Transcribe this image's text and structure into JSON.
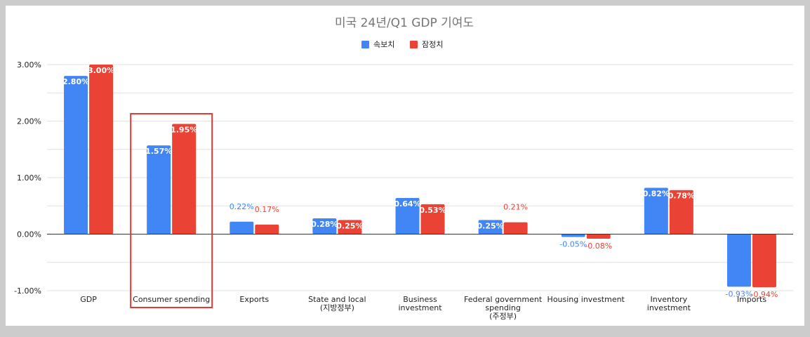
{
  "colors": {
    "series_blue": "#4285f4",
    "series_red": "#ea4335",
    "highlight_box": "#e53935",
    "grid": "#e0e0e0",
    "zero_line": "#333333"
  },
  "chart_data": {
    "type": "bar",
    "title": "미국 24년/Q1 GDP 기여도",
    "legend_position": "top",
    "grid": true,
    "categories": [
      [
        "GDP"
      ],
      [
        "Consumer spending"
      ],
      [
        "Exports"
      ],
      [
        "State and local",
        "(지방정부)"
      ],
      [
        "Business",
        "investment"
      ],
      [
        "Federal government",
        "spending",
        "(주정부)"
      ],
      [
        "Housing investment"
      ],
      [
        "Inventory",
        "investment"
      ],
      [
        "Imports"
      ]
    ],
    "series": [
      {
        "name": "속보치",
        "values": [
          2.8,
          1.57,
          0.22,
          0.28,
          0.64,
          0.25,
          -0.05,
          0.82,
          -0.93
        ],
        "labels": [
          "2.80%",
          "1.57%",
          "0.22%",
          "0.28%",
          "0.64%",
          "0.25%",
          "-0.05%",
          "0.82%",
          "-0.93%"
        ]
      },
      {
        "name": "잠정치",
        "values": [
          3.0,
          1.95,
          0.17,
          0.25,
          0.53,
          0.21,
          -0.08,
          0.78,
          -0.94
        ],
        "labels": [
          "3.00%",
          "1.95%",
          "0.17%",
          "0.25%",
          "0.53%",
          "0.21%",
          "-0.08%",
          "0.78%",
          "-0.94%"
        ]
      }
    ],
    "ylim": [
      -1.0,
      3.0
    ],
    "yticks": [
      3.0,
      2.0,
      1.0,
      0.0,
      -1.0
    ],
    "ytick_labels": [
      "3.00%",
      "2.00%",
      "1.00%",
      "0.00%",
      "-1.00%"
    ],
    "highlighted_category_index": 1
  }
}
